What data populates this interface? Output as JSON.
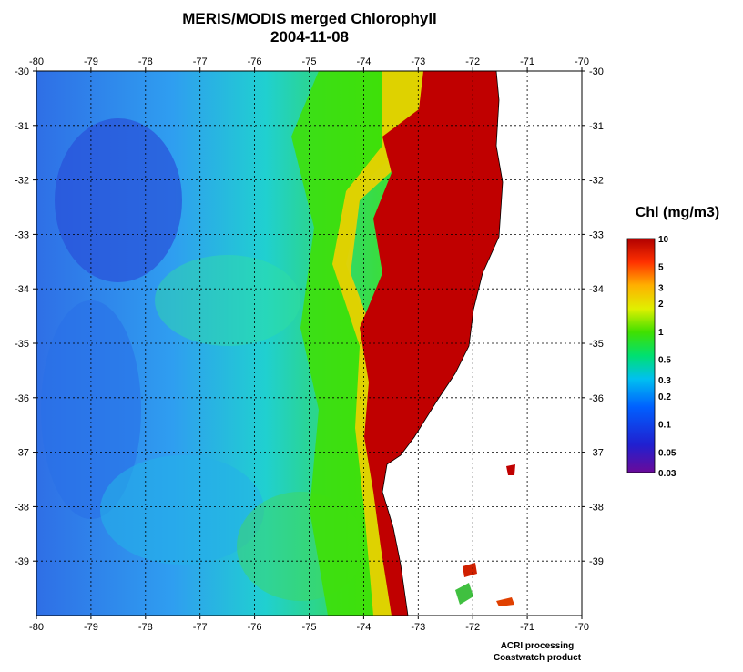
{
  "title": "MERIS/MODIS merged Chlorophyll",
  "date": "2004-11-08",
  "lon_ticks": [
    "-80",
    "-79",
    "-78",
    "-77",
    "-76",
    "-75",
    "-74",
    "-73",
    "-72",
    "-71",
    "-70"
  ],
  "lat_ticks": [
    "-30",
    "-31",
    "-32",
    "-33",
    "-34",
    "-35",
    "-36",
    "-37",
    "-38",
    "-39"
  ],
  "colorbar": {
    "label": "Chl (mg/m3)",
    "ticks": [
      "10",
      "5",
      "3",
      "2",
      "1",
      "0.5",
      "0.3",
      "0.2",
      "0.1",
      "0.05",
      "0.03"
    ]
  },
  "credit": {
    "line1": "ACRI processing",
    "line2": "Coastwatch product"
  },
  "colors": {
    "land": "#ffffff",
    "grid": "#000000",
    "high_chl": "#b00000",
    "ocean_low": "#3070e0"
  }
}
